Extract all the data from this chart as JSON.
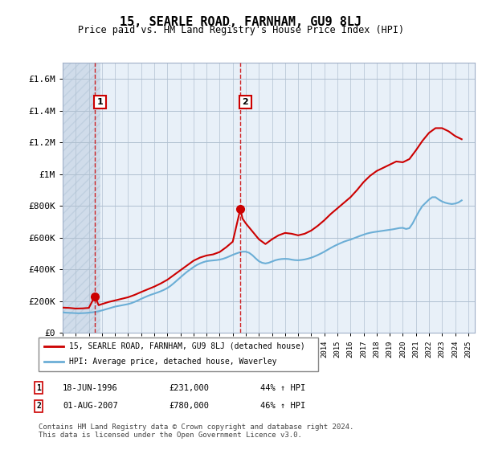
{
  "title": "15, SEARLE ROAD, FARNHAM, GU9 8LJ",
  "subtitle": "Price paid vs. HM Land Registry's House Price Index (HPI)",
  "ylabel_ticks": [
    "£0",
    "£200K",
    "£400K",
    "£600K",
    "£800K",
    "£1M",
    "£1.2M",
    "£1.4M",
    "£1.6M"
  ],
  "ylabel_vals": [
    0,
    200000,
    400000,
    600000,
    800000,
    1000000,
    1200000,
    1400000,
    1600000
  ],
  "ylim": [
    0,
    1700000
  ],
  "xlim_start": 1994.0,
  "xlim_end": 2025.5,
  "hpi_color": "#6baed6",
  "price_color": "#cc0000",
  "vline_color": "#cc0000",
  "background_plot": "#e8f0f8",
  "background_hatch": "#d0dcea",
  "grid_color": "#b0c0d0",
  "sale1_x": 1996.46,
  "sale1_y": 231000,
  "sale1_label": "1",
  "sale2_x": 2007.58,
  "sale2_y": 780000,
  "sale2_label": "2",
  "legend_line1": "15, SEARLE ROAD, FARNHAM, GU9 8LJ (detached house)",
  "legend_line2": "HPI: Average price, detached house, Waverley",
  "table_rows": [
    [
      "1",
      "18-JUN-1996",
      "£231,000",
      "44% ↑ HPI"
    ],
    [
      "2",
      "01-AUG-2007",
      "£780,000",
      "46% ↑ HPI"
    ]
  ],
  "footer": "Contains HM Land Registry data © Crown copyright and database right 2024.\nThis data is licensed under the Open Government Licence v3.0.",
  "hpi_data": {
    "years": [
      1994.0,
      1994.25,
      1994.5,
      1994.75,
      1995.0,
      1995.25,
      1995.5,
      1995.75,
      1996.0,
      1996.25,
      1996.5,
      1996.75,
      1997.0,
      1997.25,
      1997.5,
      1997.75,
      1998.0,
      1998.25,
      1998.5,
      1998.75,
      1999.0,
      1999.25,
      1999.5,
      1999.75,
      2000.0,
      2000.25,
      2000.5,
      2000.75,
      2001.0,
      2001.25,
      2001.5,
      2001.75,
      2002.0,
      2002.25,
      2002.5,
      2002.75,
      2003.0,
      2003.25,
      2003.5,
      2003.75,
      2004.0,
      2004.25,
      2004.5,
      2004.75,
      2005.0,
      2005.25,
      2005.5,
      2005.75,
      2006.0,
      2006.25,
      2006.5,
      2006.75,
      2007.0,
      2007.25,
      2007.5,
      2007.75,
      2008.0,
      2008.25,
      2008.5,
      2008.75,
      2009.0,
      2009.25,
      2009.5,
      2009.75,
      2010.0,
      2010.25,
      2010.5,
      2010.75,
      2011.0,
      2011.25,
      2011.5,
      2011.75,
      2012.0,
      2012.25,
      2012.5,
      2012.75,
      2013.0,
      2013.25,
      2013.5,
      2013.75,
      2014.0,
      2014.25,
      2014.5,
      2014.75,
      2015.0,
      2015.25,
      2015.5,
      2015.75,
      2016.0,
      2016.25,
      2016.5,
      2016.75,
      2017.0,
      2017.25,
      2017.5,
      2017.75,
      2018.0,
      2018.25,
      2018.5,
      2018.75,
      2019.0,
      2019.25,
      2019.5,
      2019.75,
      2020.0,
      2020.25,
      2020.5,
      2020.75,
      2021.0,
      2021.25,
      2021.5,
      2021.75,
      2022.0,
      2022.25,
      2022.5,
      2022.75,
      2023.0,
      2023.25,
      2023.5,
      2023.75,
      2024.0,
      2024.25,
      2024.5
    ],
    "values": [
      130000,
      128000,
      127000,
      126000,
      125000,
      124000,
      125000,
      126000,
      128000,
      130000,
      133000,
      137000,
      142000,
      148000,
      154000,
      160000,
      166000,
      170000,
      174000,
      178000,
      182000,
      188000,
      196000,
      205000,
      215000,
      224000,
      233000,
      241000,
      248000,
      255000,
      263000,
      272000,
      283000,
      297000,
      314000,
      332000,
      350000,
      368000,
      385000,
      400000,
      415000,
      428000,
      438000,
      446000,
      452000,
      455000,
      457000,
      459000,
      462000,
      467000,
      474000,
      483000,
      492000,
      500000,
      507000,
      512000,
      512000,
      505000,
      490000,
      470000,
      452000,
      442000,
      438000,
      442000,
      450000,
      458000,
      463000,
      466000,
      467000,
      466000,
      462000,
      459000,
      458000,
      460000,
      463000,
      468000,
      474000,
      482000,
      491000,
      501000,
      512000,
      524000,
      536000,
      547000,
      557000,
      566000,
      575000,
      582000,
      588000,
      596000,
      604000,
      612000,
      619000,
      626000,
      631000,
      635000,
      638000,
      641000,
      644000,
      647000,
      650000,
      653000,
      657000,
      661000,
      662000,
      655000,
      660000,
      690000,
      730000,
      768000,
      800000,
      820000,
      840000,
      855000,
      855000,
      840000,
      828000,
      820000,
      815000,
      812000,
      815000,
      822000,
      835000
    ]
  },
  "price_data": {
    "years": [
      1994.0,
      1994.5,
      1995.0,
      1995.5,
      1996.0,
      1996.46,
      1996.75,
      1997.0,
      1997.5,
      1998.0,
      1998.5,
      1999.0,
      1999.5,
      2000.0,
      2000.5,
      2001.0,
      2001.5,
      2002.0,
      2002.5,
      2003.0,
      2003.5,
      2004.0,
      2004.5,
      2005.0,
      2005.5,
      2006.0,
      2006.5,
      2007.0,
      2007.58,
      2007.75,
      2008.0,
      2008.5,
      2009.0,
      2009.5,
      2010.0,
      2010.5,
      2011.0,
      2011.5,
      2012.0,
      2012.5,
      2013.0,
      2013.5,
      2014.0,
      2014.5,
      2015.0,
      2015.5,
      2016.0,
      2016.5,
      2017.0,
      2017.5,
      2018.0,
      2018.5,
      2019.0,
      2019.5,
      2020.0,
      2020.5,
      2021.0,
      2021.5,
      2022.0,
      2022.5,
      2023.0,
      2023.5,
      2024.0,
      2024.5
    ],
    "values": [
      160000,
      158000,
      154000,
      155000,
      158000,
      231000,
      175000,
      182000,
      195000,
      205000,
      215000,
      225000,
      240000,
      258000,
      275000,
      292000,
      312000,
      335000,
      365000,
      395000,
      425000,
      455000,
      475000,
      488000,
      495000,
      510000,
      540000,
      575000,
      780000,
      720000,
      690000,
      640000,
      590000,
      560000,
      590000,
      615000,
      630000,
      625000,
      615000,
      625000,
      645000,
      675000,
      710000,
      750000,
      785000,
      820000,
      855000,
      900000,
      950000,
      990000,
      1020000,
      1040000,
      1060000,
      1080000,
      1075000,
      1095000,
      1150000,
      1210000,
      1260000,
      1290000,
      1290000,
      1270000,
      1240000,
      1220000
    ]
  }
}
